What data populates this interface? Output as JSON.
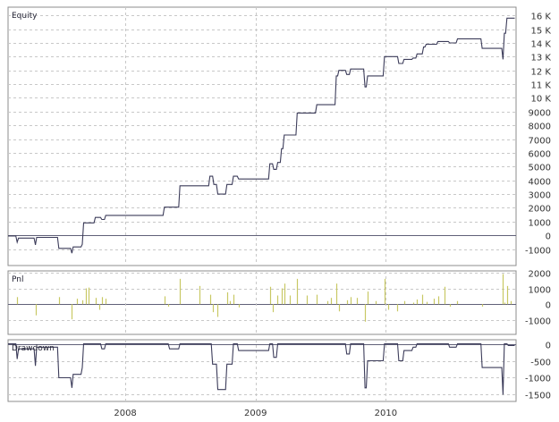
{
  "chart_data": [
    {
      "type": "line",
      "title": "Equity",
      "ylim": [
        -2200,
        16600
      ],
      "y_ticks": [
        -1000,
        0,
        1000,
        2000,
        3000,
        4000,
        5000,
        6000,
        7000,
        8000,
        9000,
        "10 K",
        "11 K",
        "12 K",
        "13 K",
        "14 K",
        "15 K",
        "16 K"
      ],
      "grid": true,
      "series": [
        {
          "color": "#3c3c5a",
          "points": [
            [
              2007.1,
              -50
            ],
            [
              2007.16,
              -50
            ],
            [
              2007.17,
              -500
            ],
            [
              2007.18,
              -200
            ],
            [
              2007.3,
              -200
            ],
            [
              2007.31,
              -700
            ],
            [
              2007.32,
              -150
            ],
            [
              2007.48,
              -150
            ],
            [
              2007.49,
              -950
            ],
            [
              2007.58,
              -950
            ],
            [
              2007.59,
              -1300
            ],
            [
              2007.6,
              -850
            ],
            [
              2007.66,
              -850
            ],
            [
              2007.67,
              -650
            ],
            [
              2007.68,
              900
            ],
            [
              2007.76,
              900
            ],
            [
              2007.77,
              1300
            ],
            [
              2007.81,
              1300
            ],
            [
              2007.82,
              1150
            ],
            [
              2007.84,
              1150
            ],
            [
              2007.85,
              1450
            ],
            [
              2008.29,
              1450
            ],
            [
              2008.3,
              2050
            ],
            [
              2008.41,
              2050
            ],
            [
              2008.42,
              3600
            ],
            [
              2008.64,
              3600
            ],
            [
              2008.65,
              4300
            ],
            [
              2008.67,
              4300
            ],
            [
              2008.68,
              3700
            ],
            [
              2008.7,
              3700
            ],
            [
              2008.71,
              3000
            ],
            [
              2008.77,
              3000
            ],
            [
              2008.78,
              3700
            ],
            [
              2008.82,
              3700
            ],
            [
              2008.83,
              4300
            ],
            [
              2008.86,
              4300
            ],
            [
              2008.87,
              4100
            ],
            [
              2009.1,
              4100
            ],
            [
              2009.11,
              5200
            ],
            [
              2009.13,
              5200
            ],
            [
              2009.14,
              4800
            ],
            [
              2009.16,
              4800
            ],
            [
              2009.17,
              5300
            ],
            [
              2009.19,
              5300
            ],
            [
              2009.2,
              6300
            ],
            [
              2009.21,
              6300
            ],
            [
              2009.22,
              7300
            ],
            [
              2009.31,
              7300
            ],
            [
              2009.32,
              8900
            ],
            [
              2009.46,
              8900
            ],
            [
              2009.47,
              9500
            ],
            [
              2009.61,
              9500
            ],
            [
              2009.62,
              11600
            ],
            [
              2009.63,
              11600
            ],
            [
              2009.64,
              12000
            ],
            [
              2009.69,
              12000
            ],
            [
              2009.7,
              11700
            ],
            [
              2009.72,
              11700
            ],
            [
              2009.73,
              12100
            ],
            [
              2009.83,
              12100
            ],
            [
              2009.84,
              10800
            ],
            [
              2009.85,
              10800
            ],
            [
              2009.86,
              11600
            ],
            [
              2009.98,
              11600
            ],
            [
              2009.99,
              13000
            ],
            [
              2010.09,
              13000
            ],
            [
              2010.1,
              12500
            ],
            [
              2010.13,
              12500
            ],
            [
              2010.14,
              12800
            ],
            [
              2010.2,
              12800
            ],
            [
              2010.21,
              12900
            ],
            [
              2010.23,
              12900
            ],
            [
              2010.24,
              13200
            ],
            [
              2010.28,
              13200
            ],
            [
              2010.29,
              13700
            ],
            [
              2010.3,
              13700
            ],
            [
              2010.31,
              13900
            ],
            [
              2010.39,
              13900
            ],
            [
              2010.4,
              14100
            ],
            [
              2010.48,
              14100
            ],
            [
              2010.49,
              14000
            ],
            [
              2010.54,
              14000
            ],
            [
              2010.55,
              14300
            ],
            [
              2010.73,
              14300
            ],
            [
              2010.74,
              13600
            ],
            [
              2010.89,
              13600
            ],
            [
              2010.9,
              12800
            ],
            [
              2010.91,
              14700
            ],
            [
              2010.92,
              14700
            ],
            [
              2010.93,
              15800
            ],
            [
              2010.99,
              15800
            ]
          ]
        }
      ]
    },
    {
      "type": "bar",
      "title": "Pnl",
      "ylim": [
        -1900,
        2100
      ],
      "y_ticks": [
        -1000,
        0,
        1000,
        2000
      ],
      "grid": true,
      "color": "#c8c864",
      "x": [
        2007.17,
        2007.31,
        2007.49,
        2007.59,
        2007.63,
        2007.67,
        2007.7,
        2007.72,
        2007.77,
        2007.8,
        2007.82,
        2007.85,
        2008.3,
        2008.33,
        2008.42,
        2008.57,
        2008.65,
        2008.67,
        2008.71,
        2008.78,
        2008.8,
        2008.83,
        2008.87,
        2009.11,
        2009.13,
        2009.17,
        2009.2,
        2009.22,
        2009.26,
        2009.32,
        2009.39,
        2009.47,
        2009.55,
        2009.58,
        2009.62,
        2009.64,
        2009.7,
        2009.73,
        2009.78,
        2009.84,
        2009.86,
        2009.92,
        2009.99,
        2010.02,
        2010.09,
        2010.14,
        2010.21,
        2010.24,
        2010.28,
        2010.31,
        2010.37,
        2010.4,
        2010.45,
        2010.49,
        2010.55,
        2010.74,
        2010.9,
        2010.91,
        2010.93,
        2010.96
      ],
      "values": [
        450,
        -700,
        450,
        -950,
        350,
        250,
        1000,
        1050,
        400,
        -350,
        450,
        350,
        500,
        -150,
        1600,
        1150,
        600,
        -500,
        -800,
        750,
        200,
        600,
        -200,
        1100,
        -500,
        550,
        1000,
        1300,
        550,
        1600,
        550,
        600,
        200,
        400,
        1300,
        -450,
        250,
        450,
        400,
        -1100,
        800,
        200,
        1600,
        -350,
        -450,
        200,
        100,
        300,
        600,
        150,
        350,
        500,
        1100,
        -150,
        200,
        -150,
        1900,
        100,
        1150,
        200
      ]
    },
    {
      "type": "line",
      "title": "Drawdown",
      "ylim": [
        -1700,
        120
      ],
      "y_ticks": [
        -1500,
        -1000,
        -500,
        0
      ],
      "grid": true,
      "series": [
        {
          "color": "#3c3c5a",
          "points": [
            [
              2007.1,
              0
            ],
            [
              2007.16,
              0
            ],
            [
              2007.17,
              -450
            ],
            [
              2007.18,
              -150
            ],
            [
              2007.3,
              -150
            ],
            [
              2007.31,
              -650
            ],
            [
              2007.32,
              -100
            ],
            [
              2007.48,
              -100
            ],
            [
              2007.49,
              -1000
            ],
            [
              2007.58,
              -1000
            ],
            [
              2007.59,
              -1300
            ],
            [
              2007.6,
              -900
            ],
            [
              2007.66,
              -900
            ],
            [
              2007.67,
              -700
            ],
            [
              2007.68,
              0
            ],
            [
              2007.81,
              0
            ],
            [
              2007.82,
              -150
            ],
            [
              2007.84,
              -150
            ],
            [
              2007.85,
              0
            ],
            [
              2008.33,
              0
            ],
            [
              2008.34,
              -150
            ],
            [
              2008.41,
              -150
            ],
            [
              2008.42,
              0
            ],
            [
              2008.66,
              0
            ],
            [
              2008.67,
              -600
            ],
            [
              2008.7,
              -600
            ],
            [
              2008.71,
              -1350
            ],
            [
              2008.77,
              -1350
            ],
            [
              2008.78,
              -600
            ],
            [
              2008.82,
              -600
            ],
            [
              2008.83,
              0
            ],
            [
              2008.86,
              0
            ],
            [
              2008.87,
              -200
            ],
            [
              2009.1,
              -200
            ],
            [
              2009.11,
              0
            ],
            [
              2009.13,
              0
            ],
            [
              2009.14,
              -400
            ],
            [
              2009.16,
              -400
            ],
            [
              2009.17,
              0
            ],
            [
              2009.69,
              0
            ],
            [
              2009.7,
              -300
            ],
            [
              2009.72,
              -300
            ],
            [
              2009.73,
              0
            ],
            [
              2009.83,
              0
            ],
            [
              2009.84,
              -1300
            ],
            [
              2009.85,
              -1300
            ],
            [
              2009.86,
              -500
            ],
            [
              2009.98,
              -500
            ],
            [
              2009.99,
              0
            ],
            [
              2010.09,
              0
            ],
            [
              2010.1,
              -500
            ],
            [
              2010.13,
              -500
            ],
            [
              2010.14,
              -200
            ],
            [
              2010.2,
              -200
            ],
            [
              2010.21,
              -100
            ],
            [
              2010.23,
              -100
            ],
            [
              2010.24,
              0
            ],
            [
              2010.48,
              0
            ],
            [
              2010.49,
              -100
            ],
            [
              2010.54,
              -100
            ],
            [
              2010.55,
              0
            ],
            [
              2010.73,
              0
            ],
            [
              2010.74,
              -700
            ],
            [
              2010.89,
              -700
            ],
            [
              2010.9,
              -1500
            ],
            [
              2010.91,
              0
            ],
            [
              2010.93,
              0
            ],
            [
              2010.94,
              -50
            ],
            [
              2010.99,
              -50
            ]
          ]
        }
      ]
    }
  ],
  "x_axis": {
    "xlim": [
      2007.1,
      2011.0
    ],
    "tick_labels": [
      "2008",
      "2009",
      "2010"
    ],
    "tick_values": [
      2008,
      2009,
      2010
    ]
  },
  "grid_color": "#c8c8c8"
}
